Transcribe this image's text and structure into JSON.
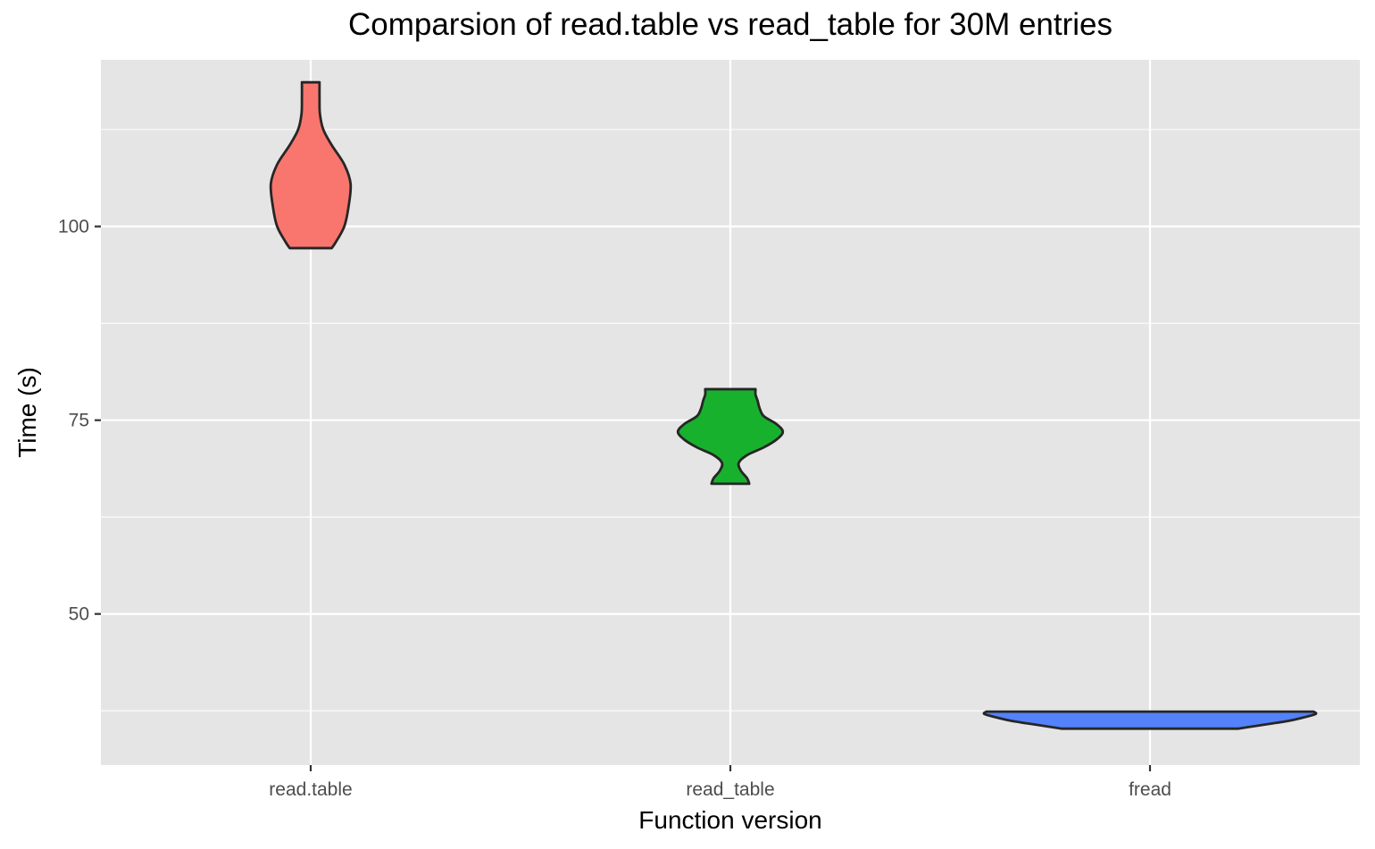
{
  "chart_data": {
    "type": "violin",
    "title": "Comparsion of read.table vs read_table for 30M entries",
    "xlabel": "Function version",
    "ylabel": "Time (s)",
    "categories": [
      "read.table",
      "read_table",
      "fread"
    ],
    "ylim": [
      30.5,
      121.5
    ],
    "yticks": [
      50,
      75,
      100
    ],
    "grid": true,
    "panel_background": "#e5e5e5",
    "outline_color": "#262626",
    "series": [
      {
        "category": "read.table",
        "color": "#F8766D",
        "min": 97.2,
        "max": 118.6,
        "profile": [
          {
            "y": 97.2,
            "d": 0.05
          },
          {
            "y": 98.0,
            "d": 0.06
          },
          {
            "y": 100.0,
            "d": 0.08
          },
          {
            "y": 102.5,
            "d": 0.09
          },
          {
            "y": 105.5,
            "d": 0.095
          },
          {
            "y": 108.0,
            "d": 0.08
          },
          {
            "y": 110.5,
            "d": 0.05
          },
          {
            "y": 112.5,
            "d": 0.03
          },
          {
            "y": 114.5,
            "d": 0.022
          },
          {
            "y": 116.5,
            "d": 0.021
          },
          {
            "y": 118.6,
            "d": 0.021
          }
        ]
      },
      {
        "category": "read_table",
        "color": "#18B12E",
        "min": 66.8,
        "max": 79.0,
        "profile": [
          {
            "y": 66.8,
            "d": 0.045
          },
          {
            "y": 67.5,
            "d": 0.04
          },
          {
            "y": 68.5,
            "d": 0.025
          },
          {
            "y": 69.5,
            "d": 0.02
          },
          {
            "y": 70.5,
            "d": 0.04
          },
          {
            "y": 71.5,
            "d": 0.08
          },
          {
            "y": 72.5,
            "d": 0.11
          },
          {
            "y": 73.5,
            "d": 0.125
          },
          {
            "y": 74.5,
            "d": 0.11
          },
          {
            "y": 75.5,
            "d": 0.08
          },
          {
            "y": 76.5,
            "d": 0.07
          },
          {
            "y": 77.5,
            "d": 0.065
          },
          {
            "y": 78.3,
            "d": 0.06
          },
          {
            "y": 79.0,
            "d": 0.06
          }
        ]
      },
      {
        "category": "fread",
        "color": "#5382FA",
        "min": 35.2,
        "max": 37.4,
        "profile": [
          {
            "y": 35.2,
            "d": 0.21
          },
          {
            "y": 35.7,
            "d": 0.27
          },
          {
            "y": 36.2,
            "d": 0.33
          },
          {
            "y": 36.7,
            "d": 0.37
          },
          {
            "y": 37.1,
            "d": 0.395
          },
          {
            "y": 37.4,
            "d": 0.39
          }
        ]
      }
    ]
  }
}
